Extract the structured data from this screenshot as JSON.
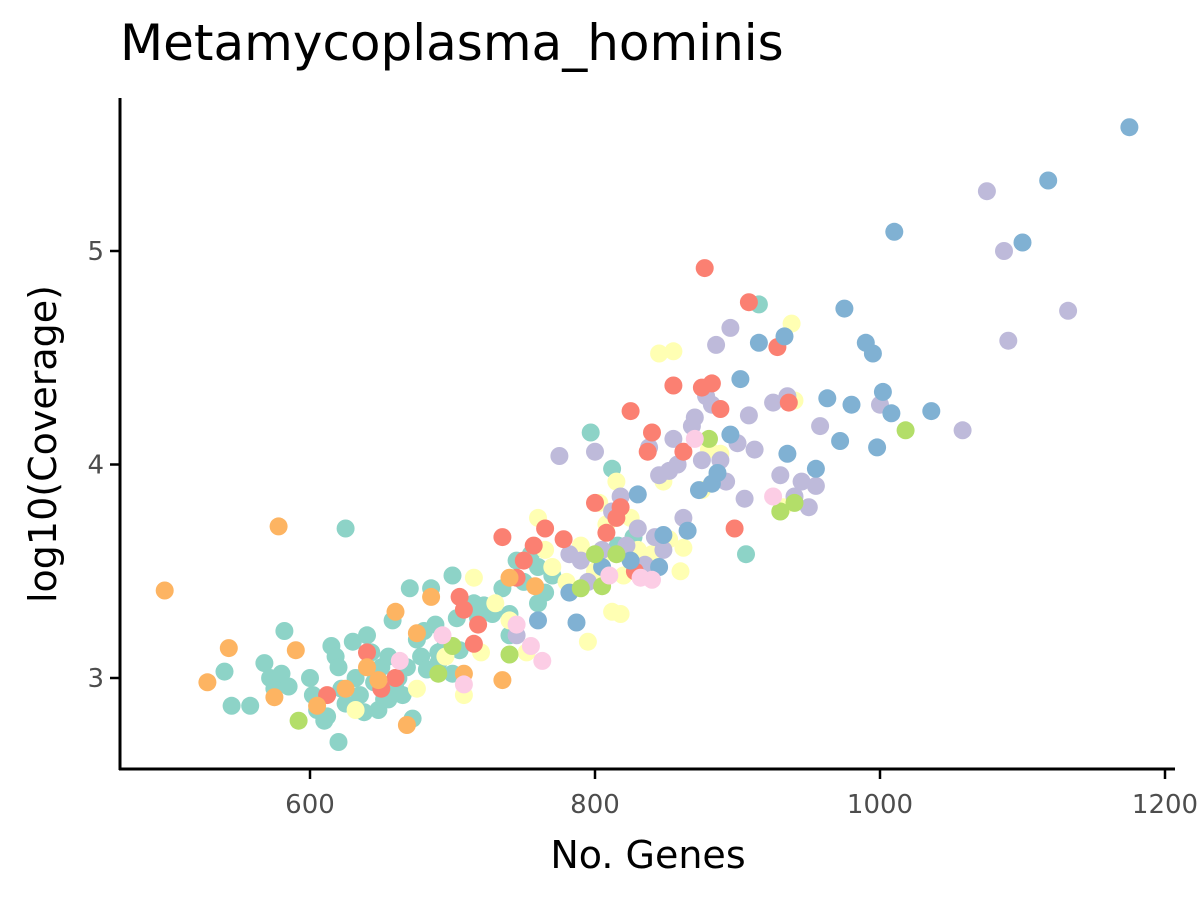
{
  "chart_data": {
    "type": "scatter",
    "title": "Metamycoplasma_hominis",
    "xlabel": "No. Genes",
    "ylabel": "log10(Coverage)",
    "xlim": [
      470,
      1210
    ],
    "ylim": [
      2.57,
      5.72
    ],
    "xticks": [
      600,
      800,
      1000,
      1200
    ],
    "yticks": [
      3,
      4,
      5
    ],
    "xtick_labels": [
      "600",
      "800",
      "1000",
      "1200"
    ],
    "ytick_labels": [
      "3",
      "4",
      "5"
    ],
    "grid": false,
    "legend": "none",
    "palette": [
      "#8dd3c7",
      "#ffffb3",
      "#bebada",
      "#fb8072",
      "#80b1d3",
      "#fdb462",
      "#b3de69",
      "#fccde5"
    ],
    "series": [
      {
        "color": "#8dd3c7",
        "points": [
          [
            540,
            3.03
          ],
          [
            545,
            2.87
          ],
          [
            558,
            2.87
          ],
          [
            568,
            3.07
          ],
          [
            572,
            3.0
          ],
          [
            575,
            2.95
          ],
          [
            580,
            3.02
          ],
          [
            582,
            3.22
          ],
          [
            585,
            2.96
          ],
          [
            600,
            3.0
          ],
          [
            602,
            2.92
          ],
          [
            605,
            2.85
          ],
          [
            610,
            2.8
          ],
          [
            615,
            3.15
          ],
          [
            618,
            3.1
          ],
          [
            620,
            3.05
          ],
          [
            622,
            2.95
          ],
          [
            625,
            2.88
          ],
          [
            630,
            3.17
          ],
          [
            632,
            3.0
          ],
          [
            635,
            2.92
          ],
          [
            638,
            2.84
          ],
          [
            640,
            3.2
          ],
          [
            643,
            3.12
          ],
          [
            645,
            2.98
          ],
          [
            648,
            2.85
          ],
          [
            650,
            3.05
          ],
          [
            652,
            2.9
          ],
          [
            655,
            3.1
          ],
          [
            658,
            3.27
          ],
          [
            660,
            2.95
          ],
          [
            662,
            3.0
          ],
          [
            665,
            2.92
          ],
          [
            668,
            3.05
          ],
          [
            670,
            3.42
          ],
          [
            672,
            2.81
          ],
          [
            675,
            3.18
          ],
          [
            678,
            3.1
          ],
          [
            680,
            3.22
          ],
          [
            682,
            3.04
          ],
          [
            685,
            3.42
          ],
          [
            688,
            3.25
          ],
          [
            690,
            3.12
          ],
          [
            695,
            3.15
          ],
          [
            700,
            3.48
          ],
          [
            703,
            3.28
          ],
          [
            705,
            3.13
          ],
          [
            710,
            3.33
          ],
          [
            715,
            3.35
          ],
          [
            718,
            3.28
          ],
          [
            722,
            3.34
          ],
          [
            728,
            3.3
          ],
          [
            735,
            3.42
          ],
          [
            740,
            3.2
          ],
          [
            745,
            3.55
          ],
          [
            750,
            3.45
          ],
          [
            755,
            3.58
          ],
          [
            760,
            3.52
          ],
          [
            765,
            3.4
          ],
          [
            770,
            3.48
          ],
          [
            620,
            2.7
          ],
          [
            612,
            2.82
          ],
          [
            625,
            3.7
          ],
          [
            660,
            3.0
          ],
          [
            655,
            2.9
          ],
          [
            797,
            4.15
          ],
          [
            812,
            3.98
          ],
          [
            816,
            3.62
          ],
          [
            827,
            3.66
          ],
          [
            906,
            3.58
          ],
          [
            915,
            4.75
          ],
          [
            740,
            3.3
          ],
          [
            760,
            3.35
          ],
          [
            700,
            3.02
          ],
          [
            690,
            3.07
          ]
        ]
      },
      {
        "color": "#ffffb3",
        "points": [
          [
            632,
            2.85
          ],
          [
            675,
            2.95
          ],
          [
            695,
            3.1
          ],
          [
            708,
            2.92
          ],
          [
            715,
            3.47
          ],
          [
            720,
            3.12
          ],
          [
            730,
            3.35
          ],
          [
            740,
            3.27
          ],
          [
            752,
            3.12
          ],
          [
            760,
            3.75
          ],
          [
            765,
            3.6
          ],
          [
            770,
            3.52
          ],
          [
            780,
            3.45
          ],
          [
            790,
            3.62
          ],
          [
            795,
            3.17
          ],
          [
            800,
            3.5
          ],
          [
            803,
            3.82
          ],
          [
            805,
            3.58
          ],
          [
            808,
            3.72
          ],
          [
            812,
            3.31
          ],
          [
            815,
            3.92
          ],
          [
            818,
            3.3
          ],
          [
            820,
            3.48
          ],
          [
            825,
            3.75
          ],
          [
            830,
            3.6
          ],
          [
            835,
            3.55
          ],
          [
            840,
            3.58
          ],
          [
            845,
            4.52
          ],
          [
            848,
            3.92
          ],
          [
            852,
            3.65
          ],
          [
            855,
            4.53
          ],
          [
            860,
            3.5
          ],
          [
            862,
            3.61
          ],
          [
            875,
            3.88
          ],
          [
            880,
            4.07
          ],
          [
            888,
            4.05
          ],
          [
            932,
            3.8
          ],
          [
            938,
            4.66
          ],
          [
            940,
            4.3
          ]
        ]
      },
      {
        "color": "#bebada",
        "points": [
          [
            745,
            3.2
          ],
          [
            775,
            4.04
          ],
          [
            782,
            3.58
          ],
          [
            790,
            3.55
          ],
          [
            795,
            3.45
          ],
          [
            800,
            4.06
          ],
          [
            805,
            3.6
          ],
          [
            812,
            3.78
          ],
          [
            818,
            3.85
          ],
          [
            822,
            3.62
          ],
          [
            830,
            3.7
          ],
          [
            835,
            3.53
          ],
          [
            838,
            4.08
          ],
          [
            842,
            3.66
          ],
          [
            845,
            3.95
          ],
          [
            848,
            3.6
          ],
          [
            852,
            3.97
          ],
          [
            855,
            4.12
          ],
          [
            858,
            4.0
          ],
          [
            862,
            3.75
          ],
          [
            868,
            4.18
          ],
          [
            870,
            4.22
          ],
          [
            875,
            4.02
          ],
          [
            878,
            4.32
          ],
          [
            882,
            4.28
          ],
          [
            885,
            4.56
          ],
          [
            888,
            4.02
          ],
          [
            892,
            3.92
          ],
          [
            895,
            4.64
          ],
          [
            900,
            4.1
          ],
          [
            905,
            3.84
          ],
          [
            908,
            4.23
          ],
          [
            912,
            4.07
          ],
          [
            925,
            4.29
          ],
          [
            930,
            3.95
          ],
          [
            935,
            4.32
          ],
          [
            940,
            3.85
          ],
          [
            945,
            3.92
          ],
          [
            950,
            3.8
          ],
          [
            955,
            3.9
          ],
          [
            958,
            4.18
          ],
          [
            1000,
            4.28
          ],
          [
            1058,
            4.16
          ],
          [
            1075,
            5.28
          ],
          [
            1087,
            5.0
          ],
          [
            1090,
            4.58
          ],
          [
            1132,
            4.72
          ]
        ]
      },
      {
        "color": "#fb8072",
        "points": [
          [
            612,
            2.92
          ],
          [
            640,
            3.12
          ],
          [
            650,
            2.95
          ],
          [
            660,
            3.0
          ],
          [
            705,
            3.38
          ],
          [
            708,
            3.32
          ],
          [
            715,
            3.16
          ],
          [
            718,
            3.25
          ],
          [
            735,
            3.66
          ],
          [
            745,
            3.47
          ],
          [
            750,
            3.55
          ],
          [
            757,
            3.62
          ],
          [
            765,
            3.7
          ],
          [
            778,
            3.65
          ],
          [
            800,
            3.82
          ],
          [
            808,
            3.68
          ],
          [
            815,
            3.75
          ],
          [
            818,
            3.8
          ],
          [
            825,
            4.25
          ],
          [
            828,
            3.5
          ],
          [
            837,
            4.06
          ],
          [
            840,
            4.15
          ],
          [
            855,
            4.37
          ],
          [
            862,
            4.06
          ],
          [
            875,
            4.36
          ],
          [
            877,
            4.92
          ],
          [
            882,
            4.38
          ],
          [
            888,
            4.26
          ],
          [
            898,
            3.7
          ],
          [
            908,
            4.76
          ],
          [
            928,
            4.55
          ],
          [
            936,
            4.29
          ]
        ]
      },
      {
        "color": "#80b1d3",
        "points": [
          [
            760,
            3.27
          ],
          [
            782,
            3.4
          ],
          [
            787,
            3.26
          ],
          [
            805,
            3.52
          ],
          [
            825,
            3.55
          ],
          [
            830,
            3.86
          ],
          [
            845,
            3.52
          ],
          [
            848,
            3.67
          ],
          [
            865,
            3.69
          ],
          [
            873,
            3.88
          ],
          [
            882,
            3.91
          ],
          [
            886,
            3.96
          ],
          [
            895,
            4.14
          ],
          [
            902,
            4.4
          ],
          [
            915,
            4.57
          ],
          [
            933,
            4.6
          ],
          [
            935,
            4.05
          ],
          [
            955,
            3.98
          ],
          [
            963,
            4.31
          ],
          [
            972,
            4.11
          ],
          [
            975,
            4.73
          ],
          [
            980,
            4.28
          ],
          [
            990,
            4.57
          ],
          [
            995,
            4.52
          ],
          [
            998,
            4.08
          ],
          [
            1002,
            4.34
          ],
          [
            1008,
            4.24
          ],
          [
            1010,
            5.09
          ],
          [
            1036,
            4.25
          ],
          [
            1100,
            5.04
          ],
          [
            1118,
            5.33
          ],
          [
            1175,
            5.58
          ]
        ]
      },
      {
        "color": "#fdb462",
        "points": [
          [
            498,
            3.41
          ],
          [
            528,
            2.98
          ],
          [
            543,
            3.14
          ],
          [
            575,
            2.91
          ],
          [
            578,
            3.71
          ],
          [
            590,
            3.13
          ],
          [
            605,
            2.87
          ],
          [
            625,
            2.95
          ],
          [
            640,
            3.05
          ],
          [
            648,
            2.99
          ],
          [
            660,
            3.31
          ],
          [
            668,
            2.78
          ],
          [
            675,
            3.21
          ],
          [
            685,
            3.38
          ],
          [
            708,
            3.02
          ],
          [
            735,
            2.99
          ],
          [
            740,
            3.47
          ],
          [
            758,
            3.43
          ]
        ]
      },
      {
        "color": "#b3de69",
        "points": [
          [
            592,
            2.8
          ],
          [
            690,
            3.02
          ],
          [
            700,
            3.15
          ],
          [
            740,
            3.11
          ],
          [
            790,
            3.42
          ],
          [
            800,
            3.58
          ],
          [
            805,
            3.43
          ],
          [
            815,
            3.58
          ],
          [
            880,
            4.12
          ],
          [
            930,
            3.78
          ],
          [
            940,
            3.82
          ],
          [
            1018,
            4.16
          ]
        ]
      },
      {
        "color": "#fccde5",
        "points": [
          [
            663,
            3.08
          ],
          [
            693,
            3.2
          ],
          [
            708,
            2.97
          ],
          [
            745,
            3.25
          ],
          [
            755,
            3.15
          ],
          [
            763,
            3.08
          ],
          [
            810,
            3.48
          ],
          [
            832,
            3.47
          ],
          [
            840,
            3.46
          ],
          [
            870,
            4.12
          ],
          [
            925,
            3.85
          ]
        ]
      }
    ]
  }
}
